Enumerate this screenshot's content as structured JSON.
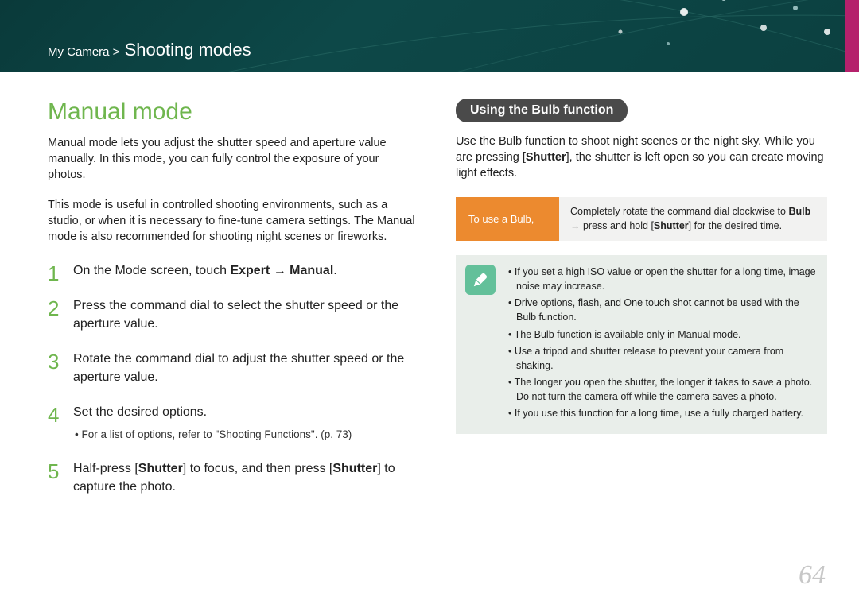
{
  "header": {
    "breadcrumb_prefix": "My Camera >",
    "breadcrumb_section": "Shooting modes",
    "bg_gradient_from": "#0a3a3a",
    "bg_gradient_to": "#0c4040",
    "accent_color": "#b5216c"
  },
  "left": {
    "title": "Manual mode",
    "title_color": "#6fb64e",
    "para1": "Manual mode lets you adjust the shutter speed and aperture value manually. In this mode, you can fully control the exposure of your photos.",
    "para2": "This mode is useful in controlled shooting environments, such as a studio, or when it is necessary to fine-tune camera settings. The Manual mode is also recommended for shooting night scenes or fireworks.",
    "steps": [
      {
        "html": "On the Mode screen, touch <b>Expert</b> → <b>Manual</b>."
      },
      {
        "html": "Press the command dial to select the shutter speed or the aperture value."
      },
      {
        "html": "Rotate the command dial to adjust the shutter speed or the aperture value."
      },
      {
        "html": "Set the desired options.",
        "sub": "For a list of options, refer to \"Shooting Functions\". (p. 73)"
      },
      {
        "html": "Half-press [<b>Shutter</b>] to focus, and then press [<b>Shutter</b>] to capture the photo."
      }
    ]
  },
  "right": {
    "pill": "Using the Bulb function",
    "pill_bg": "#4a4a4a",
    "intro_html": "Use the Bulb function to shoot night scenes or the night sky. While you are pressing [<b>Shutter</b>], the shutter is left open so you can create moving light effects.",
    "instr_label": "To use a Bulb,",
    "instr_label_bg": "#ec8a2f",
    "instr_text_html": "Completely rotate the command dial clockwise to <b>Bulb</b> → press and hold [<b>Shutter</b>] for the desired time.",
    "instr_bg": "#f2f2f1",
    "note_icon_bg": "#63c09a",
    "note_bg": "#e9eeea",
    "notes": [
      "If you set a high ISO value or open the shutter for a long time, image noise may increase.",
      "Drive options, flash, and One touch shot cannot be used with the Bulb function.",
      "The Bulb function is available only in Manual mode.",
      "Use a tripod and shutter release to prevent your camera from shaking.",
      "The longer you open the shutter, the longer it takes to save a photo. Do not turn the camera off while the camera saves a photo.",
      "If you use this function for a long time, use a fully charged battery."
    ]
  },
  "page_number": "64",
  "page_number_color": "#c7c7c7"
}
